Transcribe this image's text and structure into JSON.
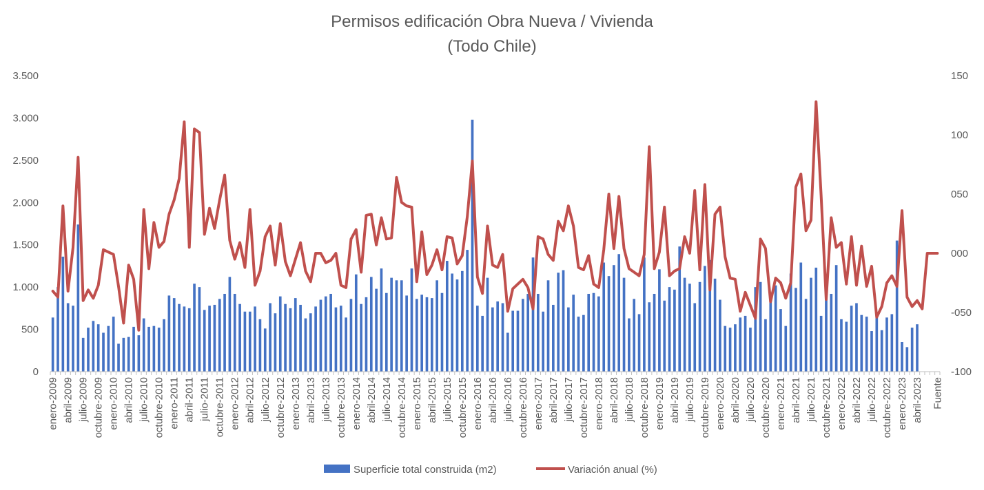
{
  "chart_data": {
    "type": "bar+line",
    "title": "Permisos edificación Obra Nueva / Vivienda",
    "subtitle": "(Todo Chile)",
    "y_left": {
      "min": 0,
      "max": 3500,
      "ticks": [
        "0",
        "500",
        "1.000",
        "1.500",
        "2.000",
        "2.500",
        "3.000",
        "3.500"
      ],
      "tick_values": [
        0,
        500,
        1000,
        1500,
        2000,
        2500,
        3000,
        3500
      ]
    },
    "y_right": {
      "min": -100,
      "max": 150,
      "ticks": [
        "-100",
        "-050",
        "000",
        "050",
        "100",
        "150"
      ],
      "tick_values": [
        -100,
        -50,
        0,
        50,
        100,
        150
      ]
    },
    "x_labels": [
      "enero-2009",
      "abril-2009",
      "julio-2009",
      "octubre-2009",
      "enero-2010",
      "abril-2010",
      "julio-2010",
      "octubre-2010",
      "enero-2011",
      "abril-2011",
      "julio-2011",
      "octubre-2011",
      "enero-2012",
      "abril-2012",
      "julio-2012",
      "octubre-2012",
      "enero-2013",
      "abril-2013",
      "julio-2013",
      "octubre-2013",
      "enero-2014",
      "abril-2014",
      "julio-2014",
      "octubre-2014",
      "enero-2015",
      "abril-2015",
      "julio-2015",
      "octubre-2015",
      "enero-2016",
      "abril-2016",
      "julio-2016",
      "octubre-2016",
      "enero-2017",
      "abril-2017",
      "julio-2017",
      "octubre-2017",
      "enero-2018",
      "abril-2018",
      "julio-2018",
      "octubre-2018",
      "enero-2019",
      "abril-2019",
      "julio-2019",
      "octubre-2019",
      "enero-2020",
      "abril-2020",
      "julio-2020",
      "octubre-2020",
      "enero-2021",
      "abril-2021",
      "julio-2021",
      "octubre-2021",
      "enero-2022",
      "abril-2022",
      "julio-2022",
      "octubre-2022",
      "enero-2023",
      "abril-2023",
      "Fuente"
    ],
    "gridlines": false,
    "legend_position": "bottom",
    "series": [
      {
        "name": "Superficie total construida (m2)",
        "type": "bar",
        "axis": "left",
        "color": "#4472C4",
        "values": [
          640,
          1000,
          1360,
          810,
          780,
          1740,
          400,
          520,
          600,
          560,
          460,
          540,
          650,
          330,
          400,
          410,
          530,
          430,
          630,
          530,
          540,
          520,
          620,
          900,
          870,
          800,
          770,
          750,
          1040,
          1000,
          730,
          780,
          790,
          860,
          920,
          1120,
          920,
          800,
          710,
          710,
          770,
          620,
          510,
          810,
          690,
          890,
          800,
          750,
          870,
          790,
          630,
          690,
          770,
          850,
          890,
          920,
          760,
          780,
          640,
          860,
          1150,
          800,
          880,
          1120,
          980,
          1220,
          930,
          1110,
          1080,
          1080,
          900,
          1220,
          860,
          910,
          880,
          870,
          1080,
          930,
          1310,
          1160,
          1090,
          1190,
          1440,
          2980,
          780,
          660,
          1110,
          760,
          830,
          810,
          460,
          720,
          720,
          860,
          920,
          1350,
          920,
          710,
          1080,
          790,
          1170,
          1200,
          760,
          910,
          650,
          670,
          920,
          930,
          890,
          1290,
          1130,
          1260,
          1390,
          1110,
          630,
          860,
          680,
          1350,
          820,
          920,
          1210,
          840,
          1000,
          970,
          1480,
          1110,
          1040,
          810,
          1060,
          1250,
          1320,
          1100,
          850,
          540,
          520,
          560,
          640,
          660,
          520,
          1000,
          1060,
          620,
          920,
          1020,
          740,
          540,
          1160,
          990,
          1290,
          860,
          1110,
          1230,
          660,
          860,
          920,
          1260,
          620,
          590,
          780,
          810,
          670,
          650,
          480,
          680,
          490,
          640,
          680,
          1550,
          350,
          290,
          520,
          560,
          0,
          0,
          0,
          0
        ]
      },
      {
        "name": "Variación anual (%)",
        "type": "line",
        "axis": "right",
        "color": "#C0504D",
        "values": [
          -32,
          -37,
          40,
          -32,
          5,
          81,
          -40,
          -31,
          -38,
          -27,
          3,
          1,
          -1,
          -28,
          -59,
          -10,
          -22,
          -65,
          37,
          -13,
          26,
          5,
          10,
          33,
          45,
          63,
          111,
          5,
          105,
          102,
          16,
          38,
          21,
          45,
          66,
          11,
          -5,
          9,
          -12,
          37,
          -27,
          -15,
          14,
          23,
          -10,
          25,
          -7,
          -19,
          -5,
          9,
          -15,
          -24,
          0,
          0,
          -8,
          -6,
          0,
          -27,
          -29,
          12,
          20,
          -16,
          32,
          33,
          7,
          30,
          12,
          13,
          64,
          43,
          40,
          39,
          -24,
          18,
          -18,
          -10,
          3,
          -14,
          14,
          13,
          -9,
          -2,
          31,
          78,
          -20,
          -34,
          23,
          -10,
          -12,
          -1,
          -49,
          -30,
          -26,
          -22,
          -29,
          -47,
          14,
          12,
          -1,
          -6,
          27,
          19,
          40,
          23,
          -12,
          -14,
          -2,
          -26,
          -29,
          3,
          50,
          4,
          48,
          4,
          -13,
          -16,
          -19,
          -1,
          90,
          -13,
          1,
          39,
          -19,
          -15,
          -13,
          14,
          0,
          53,
          -14,
          58,
          -31,
          33,
          39,
          -3,
          -21,
          -22,
          -49,
          -33,
          -44,
          -55,
          12,
          4,
          -41,
          -21,
          -25,
          -38,
          -25,
          56,
          67,
          19,
          28,
          128,
          49,
          -39,
          30,
          5,
          9,
          -26,
          14,
          -27,
          6,
          -28,
          -11,
          -54,
          -45,
          -25,
          -19,
          -28,
          36,
          -37,
          -45,
          -40,
          -47,
          0,
          0,
          0
        ]
      }
    ]
  }
}
